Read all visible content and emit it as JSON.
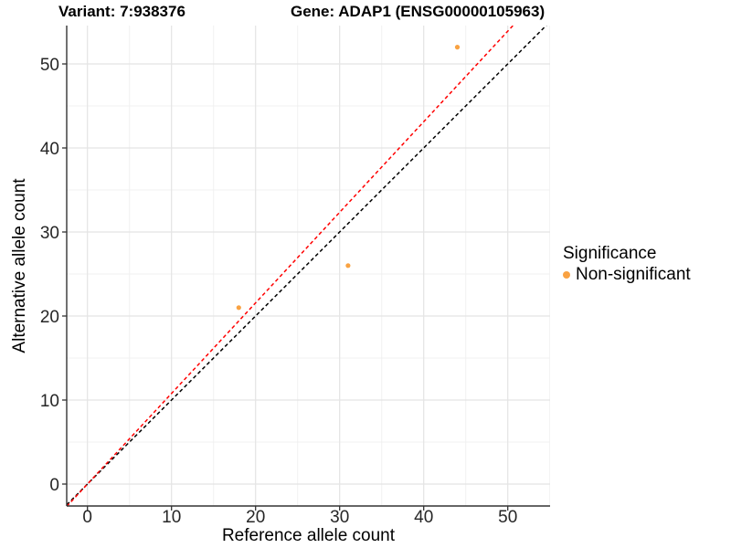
{
  "chart_data": {
    "type": "scatter",
    "title_left": "Variant: 7:938376",
    "title_right": "Gene: ADAP1 (ENSG00000105963)",
    "xlabel": "Reference allele count",
    "ylabel": "Alternative allele count",
    "xlim": [
      -2.5,
      55.0
    ],
    "ylim": [
      -2.6,
      54.6
    ],
    "xticks": [
      0,
      10,
      20,
      30,
      40,
      50
    ],
    "yticks": [
      0,
      10,
      20,
      30,
      40,
      50
    ],
    "xminor": [
      5,
      15,
      25,
      35,
      45,
      55
    ],
    "yminor": [
      5,
      15,
      25,
      35,
      45
    ],
    "grid": "major+minor",
    "legend_position": "right",
    "series": [
      {
        "name": "Non-significant",
        "color": "#F9A242",
        "points": [
          {
            "x": 18,
            "y": 21
          },
          {
            "x": 31,
            "y": 26
          },
          {
            "x": 44,
            "y": 52
          }
        ]
      }
    ],
    "reference_lines": [
      {
        "name": "identity",
        "slope": 1.0,
        "intercept": 0,
        "color": "#000000",
        "style": "dashed"
      },
      {
        "name": "fitted-ratio",
        "slope": 1.078,
        "intercept": 0,
        "color": "#FF0000",
        "style": "dashed"
      }
    ],
    "legend": {
      "title": "Significance",
      "items": [
        {
          "label": "Non-significant",
          "color": "#F9A242"
        }
      ]
    },
    "colors": {
      "point": "#F9A242",
      "grid_major": "#E4E4E4",
      "grid_minor": "#F1F1F1",
      "axis": "#333333",
      "tick_text": "#262626"
    }
  }
}
